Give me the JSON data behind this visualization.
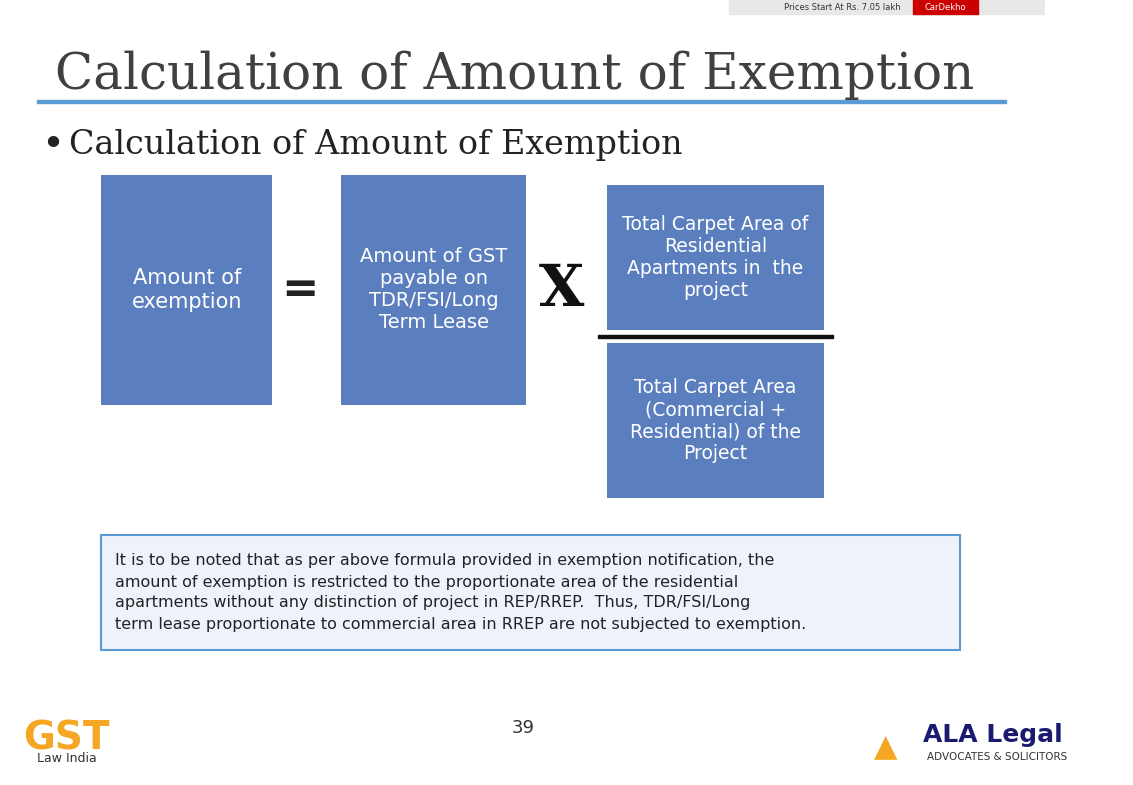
{
  "title": "Calculation of Amount of Exemption",
  "subtitle": "Calculation of Amount of Exemption",
  "title_color": "#404040",
  "subtitle_color": "#222222",
  "bg_color": "#ffffff",
  "separator_color": "#5b9bd5",
  "box_color": "#5b7fbe",
  "box_text_color": "#ffffff",
  "box1_text": "Amount of\nexemption",
  "box2_text": "Amount of GST\npayable on\nTDR/FSI/Long\nTerm Lease",
  "box3_top_text": "Total Carpet Area of\nResidential\nApartments in  the\nproject",
  "box3_bottom_text": "Total Carpet Area\n(Commercial +\nResidential) of the\nProject",
  "note_text": "It is to be noted that as per above formula provided in exemption notification, the\namount of exemption is restricted to the proportionate area of the residential\napartments without any distinction of project in REP/RREP.  Thus, TDR/FSI/Long\nterm lease proportionate to commercial area in RREP are not subjected to exemption.",
  "note_border_color": "#5b9bd5",
  "note_bg_color": "#eef3fb",
  "page_number": "39",
  "equals_symbol": "=",
  "times_symbol": "X"
}
